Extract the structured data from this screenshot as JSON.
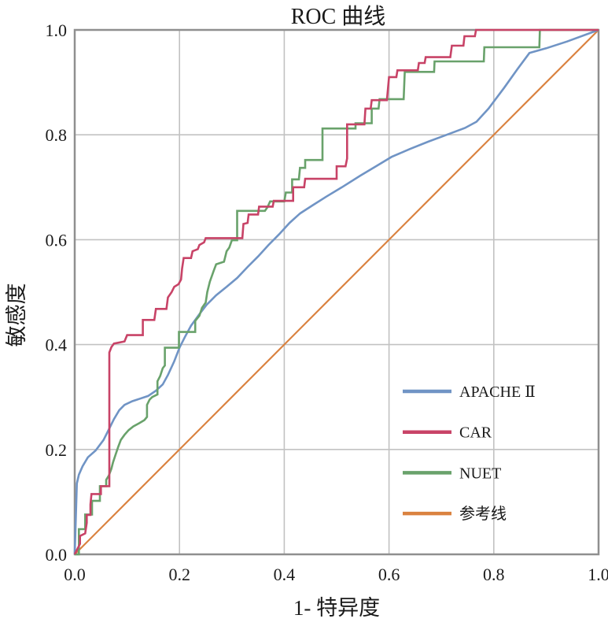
{
  "title": "ROC 曲线",
  "axes": {
    "x_label": "1- 特异度",
    "y_label": "敏感度",
    "x_ticks": [
      "0.0",
      "0.2",
      "0.4",
      "0.6",
      "0.8",
      "1.0"
    ],
    "y_ticks": [
      "0.0",
      "0.2",
      "0.4",
      "0.6",
      "0.8",
      "1.0"
    ],
    "tick_values": [
      0,
      0.2,
      0.4,
      0.6,
      0.8,
      1.0
    ]
  },
  "colors": {
    "grid": "#c2c2c2",
    "border": "#8f8f8f",
    "text": "#1a1a1a",
    "background": "#ffffff"
  },
  "chart_data": {
    "type": "line",
    "title": "ROC 曲线",
    "xlabel": "1- 特异度",
    "ylabel": "敏感度",
    "xlim": [
      0,
      1
    ],
    "ylim": [
      0,
      1
    ],
    "grid": true,
    "legend_position": "right-center-inside",
    "series": [
      {
        "id": "apache-ii",
        "name": "APACHE Ⅱ",
        "color": "#7094c5",
        "style": "smooth",
        "points": [
          [
            0,
            0
          ],
          [
            0.004,
            0.135
          ],
          [
            0.008,
            0.152
          ],
          [
            0.015,
            0.168
          ],
          [
            0.025,
            0.185
          ],
          [
            0.04,
            0.198
          ],
          [
            0.055,
            0.218
          ],
          [
            0.065,
            0.238
          ],
          [
            0.075,
            0.258
          ],
          [
            0.085,
            0.275
          ],
          [
            0.095,
            0.285
          ],
          [
            0.11,
            0.292
          ],
          [
            0.125,
            0.297
          ],
          [
            0.14,
            0.302
          ],
          [
            0.155,
            0.312
          ],
          [
            0.168,
            0.324
          ],
          [
            0.178,
            0.342
          ],
          [
            0.19,
            0.368
          ],
          [
            0.2,
            0.394
          ],
          [
            0.21,
            0.414
          ],
          [
            0.222,
            0.436
          ],
          [
            0.238,
            0.458
          ],
          [
            0.252,
            0.476
          ],
          [
            0.27,
            0.494
          ],
          [
            0.29,
            0.51
          ],
          [
            0.31,
            0.527
          ],
          [
            0.33,
            0.548
          ],
          [
            0.35,
            0.568
          ],
          [
            0.37,
            0.59
          ],
          [
            0.39,
            0.61
          ],
          [
            0.41,
            0.632
          ],
          [
            0.43,
            0.65
          ],
          [
            0.455,
            0.666
          ],
          [
            0.48,
            0.682
          ],
          [
            0.51,
            0.7
          ],
          [
            0.545,
            0.722
          ],
          [
            0.575,
            0.74
          ],
          [
            0.605,
            0.758
          ],
          [
            0.64,
            0.773
          ],
          [
            0.675,
            0.787
          ],
          [
            0.71,
            0.8
          ],
          [
            0.745,
            0.813
          ],
          [
            0.767,
            0.825
          ],
          [
            0.79,
            0.85
          ],
          [
            0.82,
            0.89
          ],
          [
            0.845,
            0.925
          ],
          [
            0.868,
            0.956
          ],
          [
            0.9,
            0.965
          ],
          [
            0.94,
            0.978
          ],
          [
            1,
            1
          ]
        ]
      },
      {
        "id": "car",
        "name": "CAR",
        "color": "#c84367",
        "style": "step",
        "points": [
          [
            0,
            0
          ],
          [
            0.005,
            0.01
          ],
          [
            0.01,
            0.02
          ],
          [
            0.01,
            0.035
          ],
          [
            0.02,
            0.04
          ],
          [
            0.023,
            0.06
          ],
          [
            0.023,
            0.075
          ],
          [
            0.03,
            0.075
          ],
          [
            0.03,
            0.095
          ],
          [
            0.032,
            0.115
          ],
          [
            0.05,
            0.115
          ],
          [
            0.05,
            0.13
          ],
          [
            0.066,
            0.13
          ],
          [
            0.066,
            0.385
          ],
          [
            0.07,
            0.395
          ],
          [
            0.075,
            0.402
          ],
          [
            0.095,
            0.406
          ],
          [
            0.1,
            0.418
          ],
          [
            0.13,
            0.418
          ],
          [
            0.13,
            0.447
          ],
          [
            0.152,
            0.447
          ],
          [
            0.155,
            0.468
          ],
          [
            0.175,
            0.468
          ],
          [
            0.178,
            0.49
          ],
          [
            0.185,
            0.5
          ],
          [
            0.19,
            0.51
          ],
          [
            0.198,
            0.515
          ],
          [
            0.203,
            0.524
          ],
          [
            0.205,
            0.545
          ],
          [
            0.208,
            0.565
          ],
          [
            0.222,
            0.565
          ],
          [
            0.225,
            0.578
          ],
          [
            0.235,
            0.582
          ],
          [
            0.238,
            0.59
          ],
          [
            0.247,
            0.595
          ],
          [
            0.25,
            0.603
          ],
          [
            0.32,
            0.603
          ],
          [
            0.322,
            0.63
          ],
          [
            0.33,
            0.632
          ],
          [
            0.332,
            0.648
          ],
          [
            0.35,
            0.648
          ],
          [
            0.352,
            0.663
          ],
          [
            0.378,
            0.663
          ],
          [
            0.38,
            0.674
          ],
          [
            0.417,
            0.674
          ],
          [
            0.417,
            0.7
          ],
          [
            0.438,
            0.7
          ],
          [
            0.44,
            0.716
          ],
          [
            0.5,
            0.716
          ],
          [
            0.5,
            0.74
          ],
          [
            0.517,
            0.74
          ],
          [
            0.52,
            0.755
          ],
          [
            0.52,
            0.82
          ],
          [
            0.553,
            0.82
          ],
          [
            0.555,
            0.85
          ],
          [
            0.565,
            0.85
          ],
          [
            0.567,
            0.866
          ],
          [
            0.596,
            0.866
          ],
          [
            0.6,
            0.91
          ],
          [
            0.614,
            0.91
          ],
          [
            0.616,
            0.923
          ],
          [
            0.655,
            0.923
          ],
          [
            0.657,
            0.937
          ],
          [
            0.668,
            0.937
          ],
          [
            0.67,
            0.948
          ],
          [
            0.717,
            0.948
          ],
          [
            0.72,
            0.97
          ],
          [
            0.742,
            0.97
          ],
          [
            0.744,
            0.988
          ],
          [
            0.764,
            0.988
          ],
          [
            0.766,
            1
          ],
          [
            1,
            1
          ]
        ]
      },
      {
        "id": "nuet",
        "name": "NUET",
        "color": "#69a26b",
        "style": "step",
        "points": [
          [
            0,
            0
          ],
          [
            0.008,
            0
          ],
          [
            0.008,
            0.048
          ],
          [
            0.02,
            0.048
          ],
          [
            0.02,
            0.076
          ],
          [
            0.033,
            0.076
          ],
          [
            0.033,
            0.102
          ],
          [
            0.048,
            0.102
          ],
          [
            0.048,
            0.13
          ],
          [
            0.06,
            0.13
          ],
          [
            0.06,
            0.142
          ],
          [
            0.065,
            0.15
          ],
          [
            0.07,
            0.163
          ],
          [
            0.073,
            0.175
          ],
          [
            0.078,
            0.19
          ],
          [
            0.083,
            0.205
          ],
          [
            0.088,
            0.218
          ],
          [
            0.095,
            0.228
          ],
          [
            0.103,
            0.237
          ],
          [
            0.112,
            0.244
          ],
          [
            0.123,
            0.25
          ],
          [
            0.133,
            0.256
          ],
          [
            0.138,
            0.262
          ],
          [
            0.138,
            0.285
          ],
          [
            0.143,
            0.295
          ],
          [
            0.148,
            0.3
          ],
          [
            0.158,
            0.305
          ],
          [
            0.158,
            0.33
          ],
          [
            0.163,
            0.34
          ],
          [
            0.168,
            0.355
          ],
          [
            0.172,
            0.36
          ],
          [
            0.172,
            0.394
          ],
          [
            0.199,
            0.394
          ],
          [
            0.199,
            0.424
          ],
          [
            0.23,
            0.424
          ],
          [
            0.23,
            0.445
          ],
          [
            0.238,
            0.455
          ],
          [
            0.243,
            0.47
          ],
          [
            0.25,
            0.48
          ],
          [
            0.253,
            0.5
          ],
          [
            0.258,
            0.52
          ],
          [
            0.265,
            0.54
          ],
          [
            0.27,
            0.553
          ],
          [
            0.285,
            0.558
          ],
          [
            0.29,
            0.578
          ],
          [
            0.295,
            0.585
          ],
          [
            0.3,
            0.599
          ],
          [
            0.31,
            0.599
          ],
          [
            0.31,
            0.655
          ],
          [
            0.363,
            0.655
          ],
          [
            0.368,
            0.662
          ],
          [
            0.373,
            0.673
          ],
          [
            0.4,
            0.673
          ],
          [
            0.403,
            0.69
          ],
          [
            0.415,
            0.69
          ],
          [
            0.415,
            0.715
          ],
          [
            0.428,
            0.715
          ],
          [
            0.43,
            0.737
          ],
          [
            0.44,
            0.737
          ],
          [
            0.44,
            0.752
          ],
          [
            0.473,
            0.752
          ],
          [
            0.473,
            0.812
          ],
          [
            0.536,
            0.812
          ],
          [
            0.536,
            0.822
          ],
          [
            0.567,
            0.822
          ],
          [
            0.567,
            0.85
          ],
          [
            0.58,
            0.85
          ],
          [
            0.582,
            0.868
          ],
          [
            0.628,
            0.868
          ],
          [
            0.63,
            0.92
          ],
          [
            0.686,
            0.92
          ],
          [
            0.687,
            0.94
          ],
          [
            0.781,
            0.94
          ],
          [
            0.782,
            0.967
          ],
          [
            0.887,
            0.967
          ],
          [
            0.888,
            1
          ],
          [
            1,
            1
          ]
        ]
      },
      {
        "id": "reference-line",
        "name": "参考线",
        "color": "#da8240",
        "style": "straight",
        "points": [
          [
            0,
            0
          ],
          [
            1,
            1
          ]
        ]
      }
    ]
  }
}
